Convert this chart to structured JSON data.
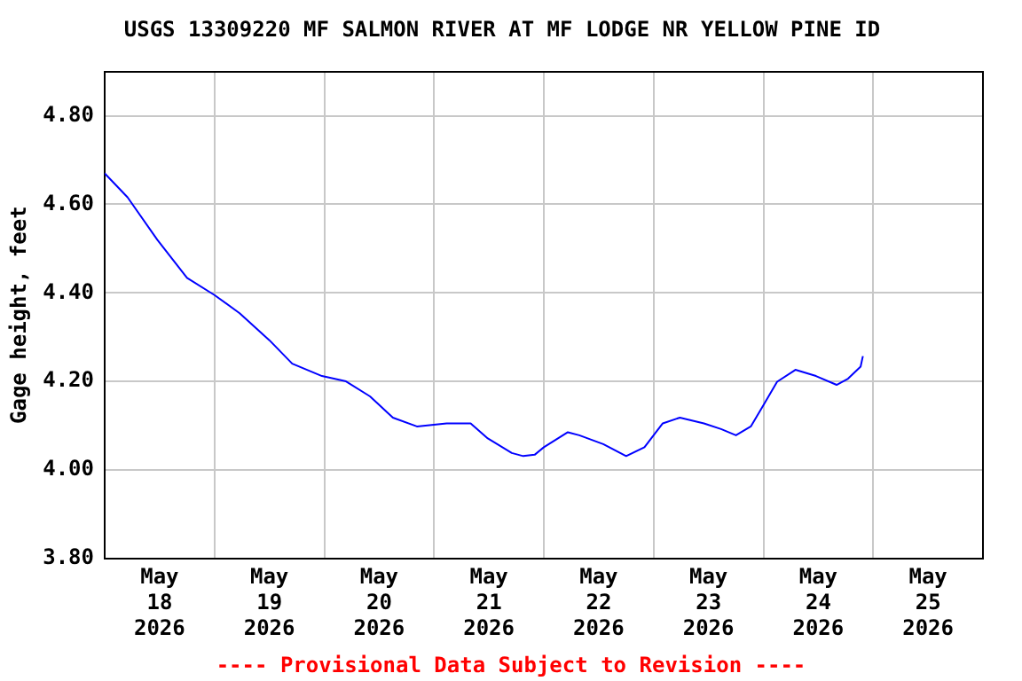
{
  "chart_data": {
    "type": "line",
    "title": "USGS 13309220 MF SALMON RIVER AT MF LODGE NR YELLOW PINE ID",
    "ylabel": "Gage height, feet",
    "annotations": [
      "---- Provisional Data Subject to Revision ----"
    ],
    "x": [
      "2026-05-18T00:00",
      "2026-05-18T05:00",
      "2026-05-18T11:30",
      "2026-05-18T18:00",
      "2026-05-19T00:00",
      "2026-05-19T05:30",
      "2026-05-19T12:00",
      "2026-05-19T17:00",
      "2026-05-19T23:30",
      "2026-05-20T04:45",
      "2026-05-20T10:00",
      "2026-05-20T15:00",
      "2026-05-20T20:15",
      "2026-05-21T02:45",
      "2026-05-21T08:00",
      "2026-05-21T11:45",
      "2026-05-21T17:00",
      "2026-05-21T19:30",
      "2026-05-21T22:00",
      "2026-05-22T00:00",
      "2026-05-22T05:15",
      "2026-05-22T07:45",
      "2026-05-22T13:00",
      "2026-05-22T18:00",
      "2026-05-22T22:00",
      "2026-05-23T02:00",
      "2026-05-23T05:45",
      "2026-05-23T11:00",
      "2026-05-23T14:45",
      "2026-05-23T18:00",
      "2026-05-23T21:15",
      "2026-05-24T00:00",
      "2026-05-24T03:00",
      "2026-05-24T07:00",
      "2026-05-24T11:30",
      "2026-05-24T16:00",
      "2026-05-24T18:30",
      "2026-05-24T21:15",
      "2026-05-24T21:45"
    ],
    "series": [
      {
        "color": "#0000ff",
        "values": [
          4.67,
          4.616,
          4.52,
          4.434,
          4.395,
          4.354,
          4.293,
          4.24,
          4.212,
          4.2,
          4.166,
          4.118,
          4.098,
          4.105,
          4.105,
          4.071,
          4.038,
          4.031,
          4.034,
          4.051,
          4.085,
          4.078,
          4.058,
          4.031,
          4.051,
          4.105,
          4.118,
          4.105,
          4.092,
          4.078,
          4.098,
          4.146,
          4.199,
          4.226,
          4.212,
          4.192,
          4.206,
          4.233,
          4.257
        ]
      }
    ],
    "xlim": [
      "2026-05-18T00:00",
      "2026-05-26T00:00"
    ],
    "xticks": [
      {
        "value": "2026-05-18T12:00",
        "label": "May\n18\n2026"
      },
      {
        "value": "2026-05-19T00:00",
        "label": null
      },
      {
        "value": "2026-05-19T12:00",
        "label": "May\n19\n2026"
      },
      {
        "value": "2026-05-20T00:00",
        "label": null
      },
      {
        "value": "2026-05-20T12:00",
        "label": "May\n20\n2026"
      },
      {
        "value": "2026-05-21T00:00",
        "label": null
      },
      {
        "value": "2026-05-21T12:00",
        "label": "May\n21\n2026"
      },
      {
        "value": "2026-05-22T00:00",
        "label": null
      },
      {
        "value": "2026-05-22T12:00",
        "label": "May\n22\n2026"
      },
      {
        "value": "2026-05-23T00:00",
        "label": null
      },
      {
        "value": "2026-05-23T12:00",
        "label": "May\n23\n2026"
      },
      {
        "value": "2026-05-24T00:00",
        "label": null
      },
      {
        "value": "2026-05-24T12:00",
        "label": "May\n24\n2026"
      },
      {
        "value": "2026-05-25T00:00",
        "label": null
      },
      {
        "value": "2026-05-25T12:00",
        "label": "May\n25\n2026"
      }
    ],
    "ylim": [
      3.8,
      4.9
    ],
    "yticks": [
      {
        "value": 3.8,
        "label": "3.80"
      },
      {
        "value": 4.0,
        "label": "4.00"
      },
      {
        "value": 4.2,
        "label": "4.20"
      },
      {
        "value": 4.4,
        "label": "4.40"
      },
      {
        "value": 4.6,
        "label": "4.60"
      },
      {
        "value": 4.8,
        "label": "4.80"
      }
    ],
    "grid": true,
    "legend": false,
    "marker": "none",
    "line_style": "solid"
  }
}
